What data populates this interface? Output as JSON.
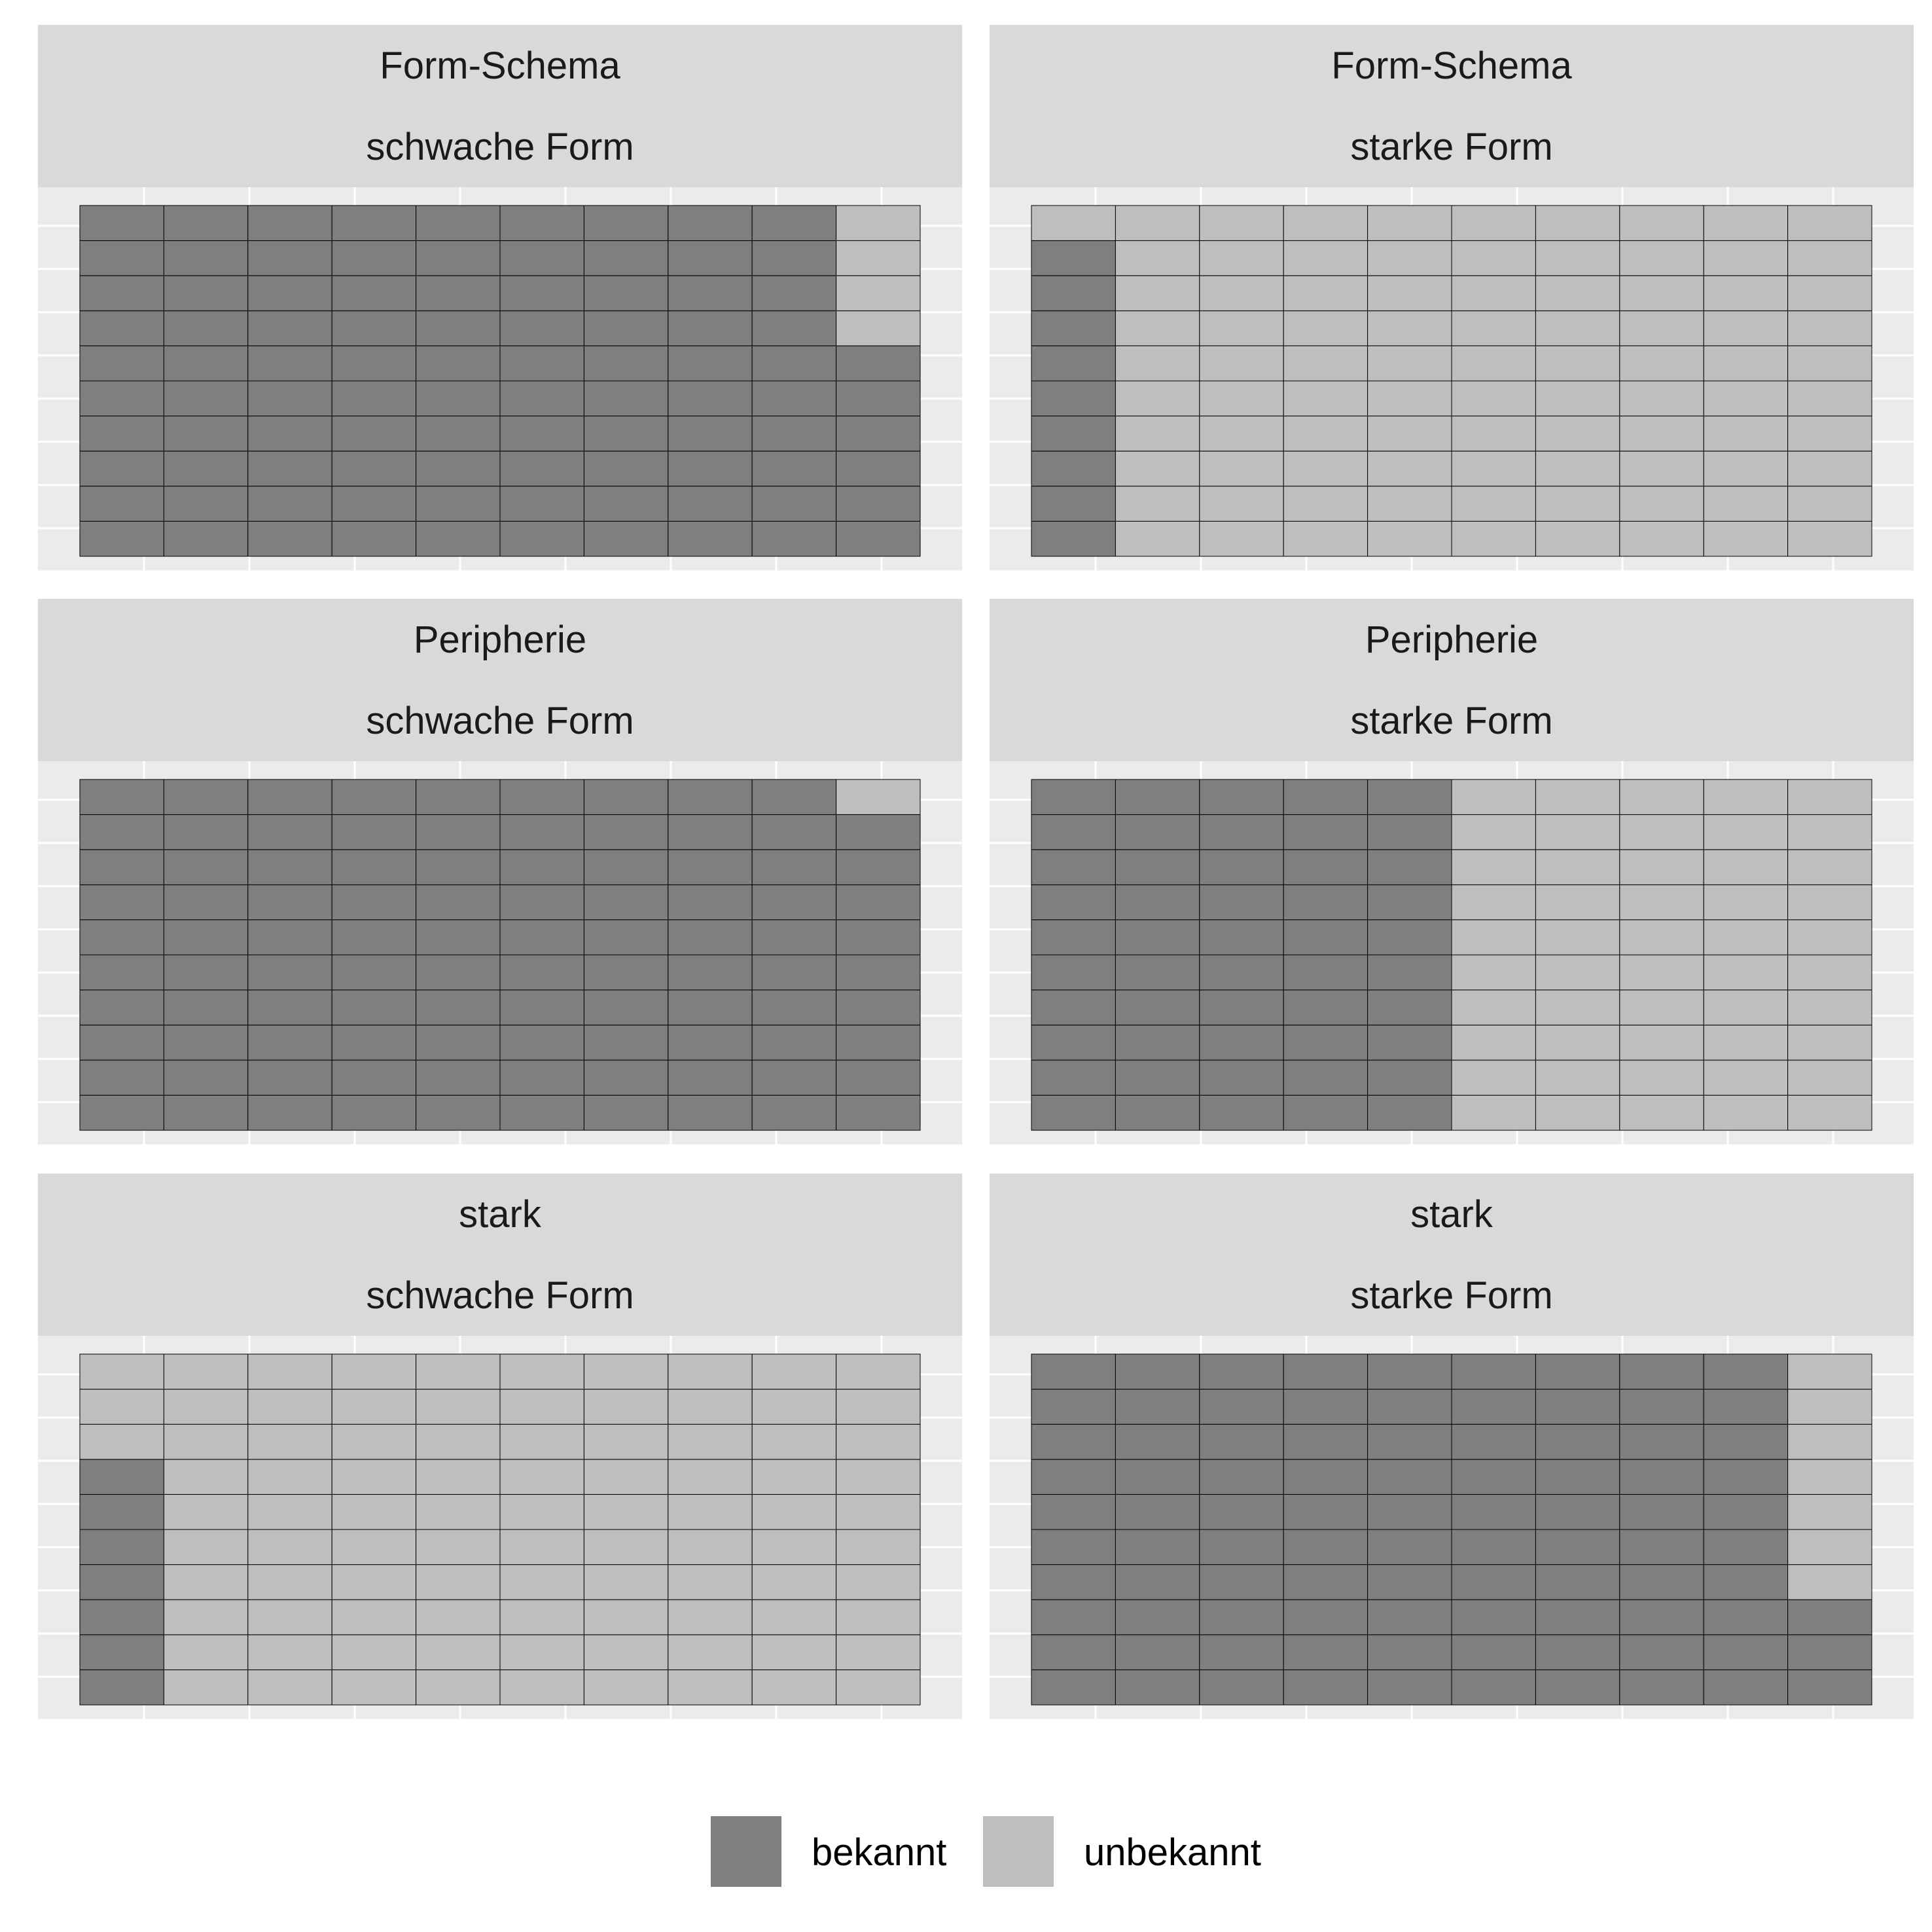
{
  "chart_data": {
    "type": "waffle",
    "grid": {
      "rows": 10,
      "cols": 10
    },
    "colors": {
      "bekannt": "#7f7f7f",
      "unbekannt": "#bebebe",
      "panel_background": "#ebebeb",
      "strip_background": "#d9d9d9",
      "gridline": "#ffffff",
      "cell_border": "#000000"
    },
    "legend": {
      "position": "bottom",
      "entries": [
        {
          "key": "bekannt",
          "label": "bekannt"
        },
        {
          "key": "unbekannt",
          "label": "unbekannt"
        }
      ]
    },
    "panels": [
      {
        "row_label": "Form-Schema",
        "col_label": "schwache Form",
        "bekannt": 96,
        "unbekannt": 4
      },
      {
        "row_label": "Form-Schema",
        "col_label": "starke Form",
        "bekannt": 9,
        "unbekannt": 91
      },
      {
        "row_label": "Peripherie",
        "col_label": "schwache Form",
        "bekannt": 99,
        "unbekannt": 1
      },
      {
        "row_label": "Peripherie",
        "col_label": "starke Form",
        "bekannt": 50,
        "unbekannt": 50
      },
      {
        "row_label": "stark",
        "col_label": "schwache Form",
        "bekannt": 7,
        "unbekannt": 93
      },
      {
        "row_label": "stark",
        "col_label": "starke Form",
        "bekannt": 93,
        "unbekannt": 7
      }
    ]
  }
}
